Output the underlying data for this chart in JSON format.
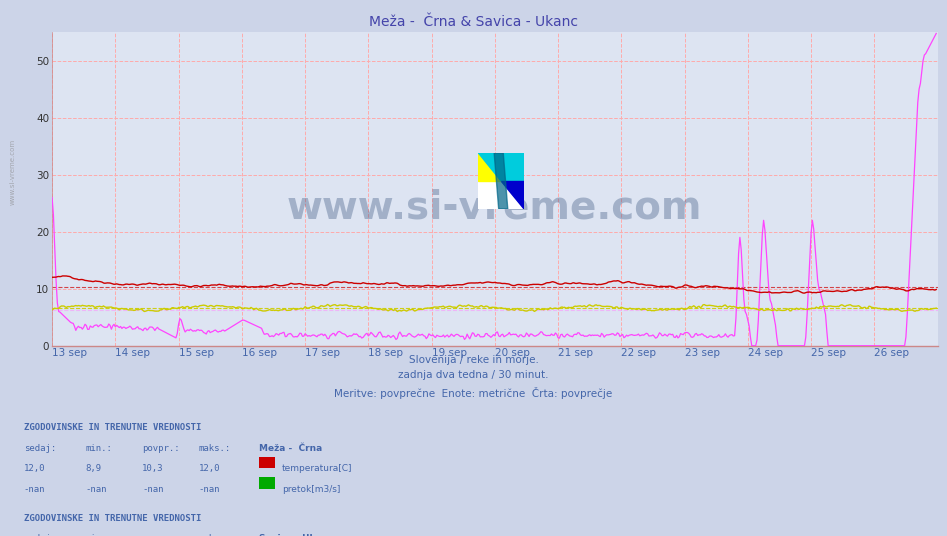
{
  "title": "Meža -  Črna & Savica - Ukanc",
  "title_color": "#4444aa",
  "bg_color": "#ccd4e8",
  "plot_bg_color": "#dde4f2",
  "grid_color": "#ffaaaa",
  "xlabel_color": "#4466aa",
  "yticks": [
    0,
    10,
    20,
    30,
    40,
    50
  ],
  "ylim": [
    0,
    55
  ],
  "xlim": [
    0,
    672
  ],
  "date_labels": [
    "13 sep",
    "14 sep",
    "15 sep",
    "16 sep",
    "17 sep",
    "18 sep",
    "19 sep",
    "20 sep",
    "21 sep",
    "22 sep",
    "23 sep",
    "24 sep",
    "25 sep",
    "26 sep"
  ],
  "date_positions": [
    0,
    48,
    96,
    144,
    192,
    240,
    288,
    336,
    384,
    432,
    480,
    528,
    576,
    624
  ],
  "watermark_text": "www.si-vreme.com",
  "watermark_color": "#1a3a6a",
  "watermark_alpha": 0.3,
  "meza_temp_color": "#cc0000",
  "meza_temp_avg": 10.3,
  "meza_pretok_color": "#00aa00",
  "savica_temp_color": "#cccc00",
  "savica_temp_avg": 6.6,
  "savica_pretok_color": "#ff44ff",
  "savica_pretok_avg": 6.2,
  "n_points": 672,
  "subtitle": "Slovenija / reke in morje.\nzadnja dva tedna / 30 minut.\nMeritve: povprečne  Enote: metrične  Črta: povprečje",
  "watermark_side": "www.si-vreme.com"
}
